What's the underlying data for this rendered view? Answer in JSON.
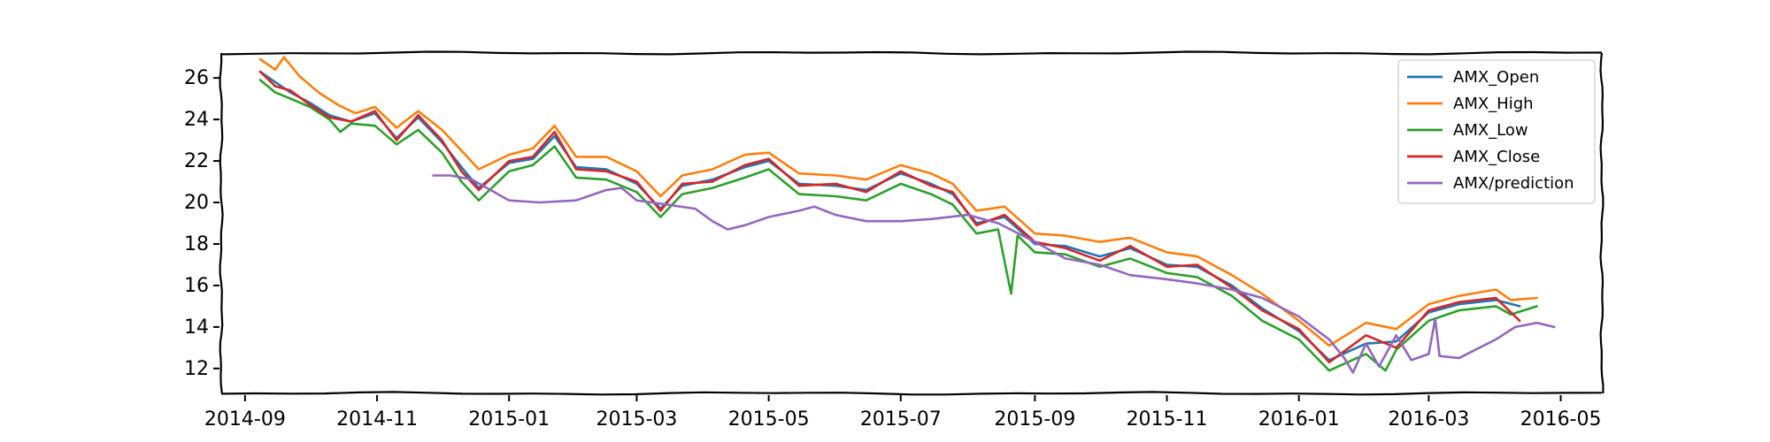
{
  "chart_data": {
    "type": "line",
    "title": "",
    "xlabel": "",
    "ylabel": "",
    "ylim": [
      10.8,
      27.2
    ],
    "xlim": [
      "2014-08-21",
      "2016-05-20"
    ],
    "grid": false,
    "legend_position": "top-right",
    "x_ticks": [
      "2014-09",
      "2014-11",
      "2015-01",
      "2015-03",
      "2015-05",
      "2015-07",
      "2015-09",
      "2015-11",
      "2016-01",
      "2016-03",
      "2016-05"
    ],
    "y_ticks": [
      12,
      14,
      16,
      18,
      20,
      22,
      24,
      26
    ],
    "series": [
      {
        "name": "AMX_Open",
        "color": "#1f77b4",
        "points": [
          [
            "2014-09-08",
            26.3
          ],
          [
            "2014-09-15",
            25.8
          ],
          [
            "2014-09-22",
            25.3
          ],
          [
            "2014-10-01",
            24.8
          ],
          [
            "2014-10-10",
            24.2
          ],
          [
            "2014-10-20",
            23.9
          ],
          [
            "2014-10-31",
            24.3
          ],
          [
            "2014-11-10",
            23.1
          ],
          [
            "2014-11-20",
            24.1
          ],
          [
            "2014-12-01",
            22.9
          ],
          [
            "2014-12-10",
            21.7
          ],
          [
            "2014-12-18",
            20.7
          ],
          [
            "2015-01-01",
            21.9
          ],
          [
            "2015-01-12",
            22.1
          ],
          [
            "2015-01-22",
            23.2
          ],
          [
            "2015-02-01",
            21.7
          ],
          [
            "2015-02-15",
            21.6
          ],
          [
            "2015-03-01",
            20.9
          ],
          [
            "2015-03-12",
            19.7
          ],
          [
            "2015-03-22",
            20.8
          ],
          [
            "2015-04-05",
            21.1
          ],
          [
            "2015-04-20",
            21.7
          ],
          [
            "2015-05-01",
            22.0
          ],
          [
            "2015-05-15",
            20.9
          ],
          [
            "2015-06-01",
            20.8
          ],
          [
            "2015-06-15",
            20.6
          ],
          [
            "2015-07-01",
            21.4
          ],
          [
            "2015-07-15",
            20.9
          ],
          [
            "2015-07-25",
            20.4
          ],
          [
            "2015-08-05",
            19.0
          ],
          [
            "2015-08-18",
            19.3
          ],
          [
            "2015-09-01",
            18.0
          ],
          [
            "2015-09-15",
            17.9
          ],
          [
            "2015-10-01",
            17.4
          ],
          [
            "2015-10-15",
            17.8
          ],
          [
            "2015-11-01",
            17.0
          ],
          [
            "2015-11-15",
            16.9
          ],
          [
            "2015-12-01",
            16.0
          ],
          [
            "2015-12-15",
            14.9
          ],
          [
            "2016-01-01",
            13.8
          ],
          [
            "2016-01-15",
            12.4
          ],
          [
            "2016-02-01",
            13.2
          ],
          [
            "2016-02-15",
            13.3
          ],
          [
            "2016-03-01",
            14.7
          ],
          [
            "2016-03-15",
            15.1
          ],
          [
            "2016-04-01",
            15.3
          ],
          [
            "2016-04-12",
            15.0
          ]
        ]
      },
      {
        "name": "AMX_High",
        "color": "#ff7f0e",
        "points": [
          [
            "2014-09-08",
            26.9
          ],
          [
            "2014-09-15",
            26.4
          ],
          [
            "2014-09-19",
            27.0
          ],
          [
            "2014-09-26",
            26.1
          ],
          [
            "2014-10-05",
            25.3
          ],
          [
            "2014-10-14",
            24.7
          ],
          [
            "2014-10-22",
            24.3
          ],
          [
            "2014-10-31",
            24.6
          ],
          [
            "2014-11-10",
            23.6
          ],
          [
            "2014-11-20",
            24.4
          ],
          [
            "2014-12-01",
            23.5
          ],
          [
            "2014-12-10",
            22.5
          ],
          [
            "2014-12-18",
            21.6
          ],
          [
            "2015-01-01",
            22.3
          ],
          [
            "2015-01-12",
            22.6
          ],
          [
            "2015-01-22",
            23.7
          ],
          [
            "2015-02-01",
            22.2
          ],
          [
            "2015-02-15",
            22.2
          ],
          [
            "2015-03-01",
            21.5
          ],
          [
            "2015-03-12",
            20.3
          ],
          [
            "2015-03-22",
            21.3
          ],
          [
            "2015-04-05",
            21.6
          ],
          [
            "2015-04-20",
            22.3
          ],
          [
            "2015-05-01",
            22.4
          ],
          [
            "2015-05-15",
            21.4
          ],
          [
            "2015-06-01",
            21.3
          ],
          [
            "2015-06-15",
            21.1
          ],
          [
            "2015-07-01",
            21.8
          ],
          [
            "2015-07-15",
            21.4
          ],
          [
            "2015-07-25",
            20.9
          ],
          [
            "2015-08-05",
            19.6
          ],
          [
            "2015-08-18",
            19.8
          ],
          [
            "2015-09-01",
            18.5
          ],
          [
            "2015-09-15",
            18.4
          ],
          [
            "2015-10-01",
            18.1
          ],
          [
            "2015-10-15",
            18.3
          ],
          [
            "2015-11-01",
            17.6
          ],
          [
            "2015-11-15",
            17.4
          ],
          [
            "2015-12-01",
            16.5
          ],
          [
            "2015-12-15",
            15.6
          ],
          [
            "2016-01-01",
            14.3
          ],
          [
            "2016-01-15",
            13.1
          ],
          [
            "2016-02-01",
            14.2
          ],
          [
            "2016-02-15",
            13.9
          ],
          [
            "2016-03-01",
            15.1
          ],
          [
            "2016-03-15",
            15.5
          ],
          [
            "2016-04-01",
            15.8
          ],
          [
            "2016-04-08",
            15.3
          ],
          [
            "2016-04-20",
            15.4
          ]
        ]
      },
      {
        "name": "AMX_Low",
        "color": "#2ca02c",
        "points": [
          [
            "2014-09-08",
            25.9
          ],
          [
            "2014-09-15",
            25.3
          ],
          [
            "2014-09-22",
            25.0
          ],
          [
            "2014-10-01",
            24.6
          ],
          [
            "2014-10-10",
            24.0
          ],
          [
            "2014-10-15",
            23.4
          ],
          [
            "2014-10-20",
            23.8
          ],
          [
            "2014-10-31",
            23.7
          ],
          [
            "2014-11-10",
            22.8
          ],
          [
            "2014-11-20",
            23.5
          ],
          [
            "2014-12-01",
            22.4
          ],
          [
            "2014-12-10",
            21.0
          ],
          [
            "2014-12-18",
            20.1
          ],
          [
            "2015-01-01",
            21.5
          ],
          [
            "2015-01-12",
            21.8
          ],
          [
            "2015-01-22",
            22.7
          ],
          [
            "2015-02-01",
            21.2
          ],
          [
            "2015-02-15",
            21.1
          ],
          [
            "2015-03-01",
            20.5
          ],
          [
            "2015-03-12",
            19.3
          ],
          [
            "2015-03-22",
            20.4
          ],
          [
            "2015-04-05",
            20.7
          ],
          [
            "2015-04-20",
            21.2
          ],
          [
            "2015-05-01",
            21.6
          ],
          [
            "2015-05-15",
            20.4
          ],
          [
            "2015-06-01",
            20.3
          ],
          [
            "2015-06-15",
            20.1
          ],
          [
            "2015-07-01",
            20.9
          ],
          [
            "2015-07-15",
            20.4
          ],
          [
            "2015-07-25",
            19.9
          ],
          [
            "2015-08-05",
            18.5
          ],
          [
            "2015-08-15",
            18.7
          ],
          [
            "2015-08-21",
            15.6
          ],
          [
            "2015-08-24",
            18.4
          ],
          [
            "2015-09-01",
            17.6
          ],
          [
            "2015-09-15",
            17.5
          ],
          [
            "2015-10-01",
            16.9
          ],
          [
            "2015-10-15",
            17.3
          ],
          [
            "2015-11-01",
            16.6
          ],
          [
            "2015-11-15",
            16.4
          ],
          [
            "2015-12-01",
            15.5
          ],
          [
            "2015-12-15",
            14.3
          ],
          [
            "2016-01-01",
            13.4
          ],
          [
            "2016-01-15",
            11.9
          ],
          [
            "2016-02-01",
            12.7
          ],
          [
            "2016-02-10",
            11.9
          ],
          [
            "2016-02-15",
            12.9
          ],
          [
            "2016-03-01",
            14.3
          ],
          [
            "2016-03-15",
            14.8
          ],
          [
            "2016-04-01",
            15.0
          ],
          [
            "2016-04-08",
            14.6
          ],
          [
            "2016-04-20",
            15.0
          ]
        ]
      },
      {
        "name": "AMX_Close",
        "color": "#d62728",
        "points": [
          [
            "2014-09-08",
            26.3
          ],
          [
            "2014-09-15",
            25.6
          ],
          [
            "2014-09-22",
            25.4
          ],
          [
            "2014-10-01",
            24.7
          ],
          [
            "2014-10-10",
            24.1
          ],
          [
            "2014-10-20",
            23.9
          ],
          [
            "2014-10-31",
            24.4
          ],
          [
            "2014-11-10",
            23.0
          ],
          [
            "2014-11-20",
            24.2
          ],
          [
            "2014-12-01",
            23.0
          ],
          [
            "2014-12-10",
            21.5
          ],
          [
            "2014-12-18",
            20.6
          ],
          [
            "2015-01-01",
            22.0
          ],
          [
            "2015-01-12",
            22.2
          ],
          [
            "2015-01-22",
            23.4
          ],
          [
            "2015-02-01",
            21.6
          ],
          [
            "2015-02-15",
            21.5
          ],
          [
            "2015-03-01",
            21.0
          ],
          [
            "2015-03-12",
            19.6
          ],
          [
            "2015-03-22",
            20.9
          ],
          [
            "2015-04-05",
            21.0
          ],
          [
            "2015-04-20",
            21.8
          ],
          [
            "2015-05-01",
            22.1
          ],
          [
            "2015-05-15",
            20.8
          ],
          [
            "2015-06-01",
            20.9
          ],
          [
            "2015-06-15",
            20.5
          ],
          [
            "2015-07-01",
            21.5
          ],
          [
            "2015-07-15",
            20.8
          ],
          [
            "2015-07-25",
            20.5
          ],
          [
            "2015-08-05",
            18.9
          ],
          [
            "2015-08-18",
            19.4
          ],
          [
            "2015-09-01",
            18.1
          ],
          [
            "2015-09-15",
            17.8
          ],
          [
            "2015-10-01",
            17.2
          ],
          [
            "2015-10-15",
            17.9
          ],
          [
            "2015-11-01",
            16.9
          ],
          [
            "2015-11-15",
            17.0
          ],
          [
            "2015-12-01",
            15.9
          ],
          [
            "2015-12-15",
            14.8
          ],
          [
            "2016-01-01",
            13.9
          ],
          [
            "2016-01-15",
            12.3
          ],
          [
            "2016-02-01",
            13.6
          ],
          [
            "2016-02-15",
            13.0
          ],
          [
            "2016-03-01",
            14.8
          ],
          [
            "2016-03-15",
            15.2
          ],
          [
            "2016-04-01",
            15.4
          ],
          [
            "2016-04-12",
            14.3
          ]
        ]
      },
      {
        "name": "AMX/prediction",
        "color": "#9467bd",
        "points": [
          [
            "2014-11-27",
            21.3
          ],
          [
            "2014-12-05",
            21.3
          ],
          [
            "2014-12-15",
            21.1
          ],
          [
            "2015-01-01",
            20.1
          ],
          [
            "2015-01-15",
            20.0
          ],
          [
            "2015-02-01",
            20.1
          ],
          [
            "2015-02-15",
            20.6
          ],
          [
            "2015-02-22",
            20.7
          ],
          [
            "2015-03-01",
            20.1
          ],
          [
            "2015-03-15",
            19.9
          ],
          [
            "2015-03-28",
            19.7
          ],
          [
            "2015-04-05",
            19.1
          ],
          [
            "2015-04-12",
            18.7
          ],
          [
            "2015-04-20",
            18.9
          ],
          [
            "2015-05-01",
            19.3
          ],
          [
            "2015-05-15",
            19.6
          ],
          [
            "2015-05-22",
            19.8
          ],
          [
            "2015-06-01",
            19.4
          ],
          [
            "2015-06-15",
            19.1
          ],
          [
            "2015-07-01",
            19.1
          ],
          [
            "2015-07-15",
            19.2
          ],
          [
            "2015-08-01",
            19.4
          ],
          [
            "2015-08-15",
            19.0
          ],
          [
            "2015-09-01",
            18.1
          ],
          [
            "2015-09-15",
            17.3
          ],
          [
            "2015-10-01",
            17.0
          ],
          [
            "2015-10-15",
            16.5
          ],
          [
            "2015-11-01",
            16.3
          ],
          [
            "2015-11-15",
            16.1
          ],
          [
            "2015-12-01",
            15.8
          ],
          [
            "2015-12-15",
            15.4
          ],
          [
            "2016-01-01",
            14.5
          ],
          [
            "2016-01-15",
            13.4
          ],
          [
            "2016-01-22",
            12.5
          ],
          [
            "2016-01-26",
            11.8
          ],
          [
            "2016-02-01",
            13.2
          ],
          [
            "2016-02-07",
            12.1
          ],
          [
            "2016-02-15",
            13.6
          ],
          [
            "2016-02-22",
            12.4
          ],
          [
            "2016-03-01",
            12.7
          ],
          [
            "2016-03-04",
            14.4
          ],
          [
            "2016-03-06",
            12.6
          ],
          [
            "2016-03-15",
            12.5
          ],
          [
            "2016-04-01",
            13.4
          ],
          [
            "2016-04-10",
            14.0
          ],
          [
            "2016-04-20",
            14.2
          ],
          [
            "2016-04-28",
            14.0
          ]
        ]
      }
    ]
  }
}
